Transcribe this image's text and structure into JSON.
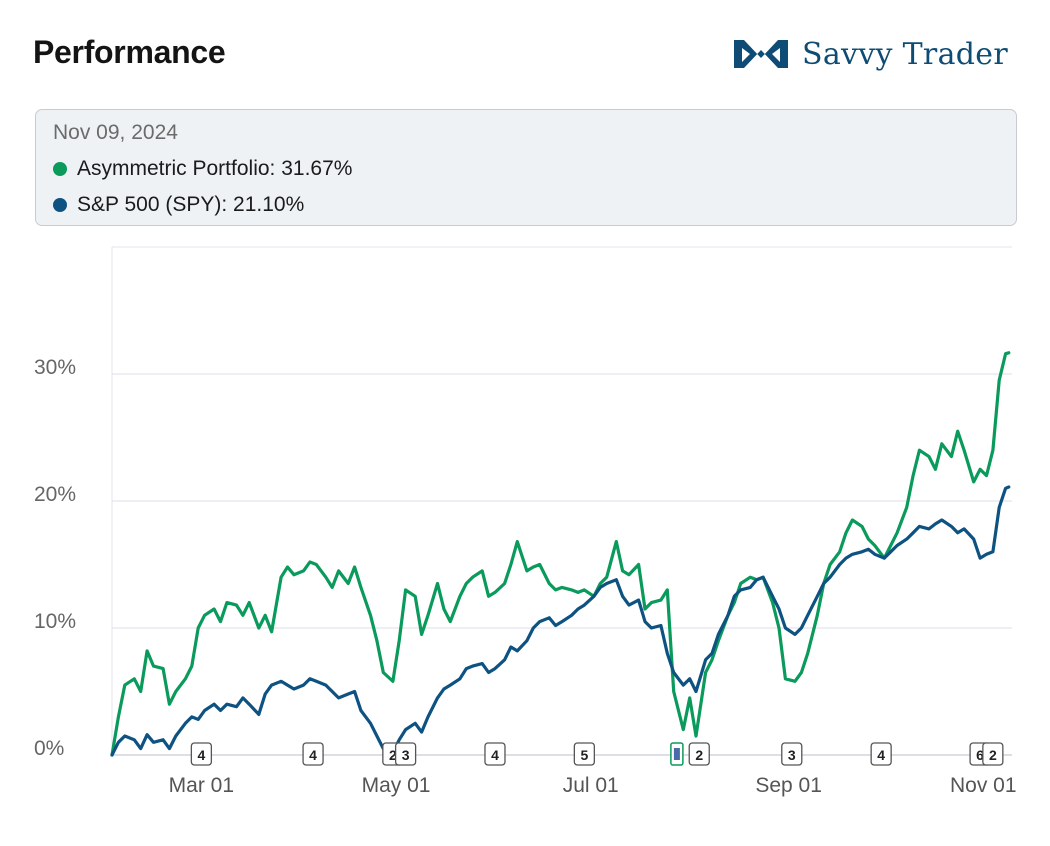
{
  "header": {
    "title": "Performance"
  },
  "brand": {
    "name": "Savvy Trader",
    "color": "#0e4c75",
    "logo_icon": "savvy-trader-logo-icon"
  },
  "tooltip": {
    "date": "Nov 09, 2024",
    "entries": [
      {
        "name": "Asymmetric Portfolio",
        "value": "31.67%",
        "color": "#0a9a5b"
      },
      {
        "name": "S&P 500 (SPY)",
        "value": "21.10%",
        "color": "#0e5282"
      }
    ]
  },
  "chart_data": {
    "type": "line",
    "title": "Performance",
    "xlabel": "",
    "ylabel": "",
    "xlim": [
      "2024-02-02",
      "2024-11-10"
    ],
    "ylim": [
      0,
      40
    ],
    "grid": true,
    "yticks": [
      {
        "value": 0,
        "label": "0%"
      },
      {
        "value": 10,
        "label": "10%"
      },
      {
        "value": 20,
        "label": "20%"
      },
      {
        "value": 30,
        "label": "30%"
      }
    ],
    "xticks": [
      {
        "date": "2024-03-01",
        "label": "Mar 01"
      },
      {
        "date": "2024-05-01",
        "label": "May 01"
      },
      {
        "date": "2024-07-01",
        "label": "Jul 01"
      },
      {
        "date": "2024-09-01",
        "label": "Sep 01"
      },
      {
        "date": "2024-11-01",
        "label": "Nov 01"
      }
    ],
    "series": [
      {
        "name": "Asymmetric Portfolio",
        "color": "#0a9a5b",
        "points": [
          [
            "2024-02-02",
            0
          ],
          [
            "2024-02-04",
            3
          ],
          [
            "2024-02-06",
            5.5
          ],
          [
            "2024-02-09",
            6
          ],
          [
            "2024-02-11",
            5
          ],
          [
            "2024-02-13",
            8.2
          ],
          [
            "2024-02-15",
            7
          ],
          [
            "2024-02-18",
            6.8
          ],
          [
            "2024-02-20",
            4
          ],
          [
            "2024-02-22",
            5
          ],
          [
            "2024-02-25",
            6
          ],
          [
            "2024-02-27",
            7
          ],
          [
            "2024-02-29",
            10
          ],
          [
            "2024-03-02",
            11
          ],
          [
            "2024-03-05",
            11.5
          ],
          [
            "2024-03-07",
            10.5
          ],
          [
            "2024-03-09",
            12
          ],
          [
            "2024-03-12",
            11.8
          ],
          [
            "2024-03-14",
            11
          ],
          [
            "2024-03-16",
            12
          ],
          [
            "2024-03-19",
            10
          ],
          [
            "2024-03-21",
            11
          ],
          [
            "2024-03-23",
            9.7
          ],
          [
            "2024-03-26",
            14
          ],
          [
            "2024-03-28",
            14.8
          ],
          [
            "2024-03-30",
            14.2
          ],
          [
            "2024-04-02",
            14.5
          ],
          [
            "2024-04-04",
            15.2
          ],
          [
            "2024-04-06",
            15
          ],
          [
            "2024-04-09",
            14
          ],
          [
            "2024-04-11",
            13.2
          ],
          [
            "2024-04-13",
            14.5
          ],
          [
            "2024-04-16",
            13.5
          ],
          [
            "2024-04-18",
            14.8
          ],
          [
            "2024-04-20",
            13.2
          ],
          [
            "2024-04-23",
            11
          ],
          [
            "2024-04-25",
            9
          ],
          [
            "2024-04-27",
            6.5
          ],
          [
            "2024-04-30",
            5.8
          ],
          [
            "2024-05-02",
            9
          ],
          [
            "2024-05-04",
            13
          ],
          [
            "2024-05-07",
            12.5
          ],
          [
            "2024-05-09",
            9.5
          ],
          [
            "2024-05-11",
            11
          ],
          [
            "2024-05-14",
            13.5
          ],
          [
            "2024-05-16",
            11.5
          ],
          [
            "2024-05-18",
            10.5
          ],
          [
            "2024-05-21",
            12.5
          ],
          [
            "2024-05-23",
            13.5
          ],
          [
            "2024-05-25",
            14
          ],
          [
            "2024-05-28",
            14.5
          ],
          [
            "2024-05-30",
            12.5
          ],
          [
            "2024-06-01",
            12.8
          ],
          [
            "2024-06-04",
            13.5
          ],
          [
            "2024-06-06",
            15
          ],
          [
            "2024-06-08",
            16.8
          ],
          [
            "2024-06-11",
            14.5
          ],
          [
            "2024-06-13",
            14.8
          ],
          [
            "2024-06-15",
            15
          ],
          [
            "2024-06-18",
            13.5
          ],
          [
            "2024-06-20",
            13
          ],
          [
            "2024-06-22",
            13.2
          ],
          [
            "2024-06-25",
            13
          ],
          [
            "2024-06-27",
            12.8
          ],
          [
            "2024-06-29",
            13
          ],
          [
            "2024-07-02",
            12.5
          ],
          [
            "2024-07-04",
            13.5
          ],
          [
            "2024-07-06",
            14
          ],
          [
            "2024-07-09",
            16.8
          ],
          [
            "2024-07-11",
            14.5
          ],
          [
            "2024-07-13",
            14.2
          ],
          [
            "2024-07-16",
            15
          ],
          [
            "2024-07-18",
            11.5
          ],
          [
            "2024-07-20",
            12
          ],
          [
            "2024-07-23",
            12.2
          ],
          [
            "2024-07-25",
            13
          ],
          [
            "2024-07-27",
            5
          ],
          [
            "2024-07-30",
            2
          ],
          [
            "2024-08-01",
            4.5
          ],
          [
            "2024-08-03",
            1.5
          ],
          [
            "2024-08-06",
            6.5
          ],
          [
            "2024-08-08",
            7.5
          ],
          [
            "2024-08-10",
            9
          ],
          [
            "2024-08-13",
            11
          ],
          [
            "2024-08-15",
            12
          ],
          [
            "2024-08-17",
            13.5
          ],
          [
            "2024-08-20",
            14
          ],
          [
            "2024-08-22",
            13.8
          ],
          [
            "2024-08-24",
            14
          ],
          [
            "2024-08-27",
            12
          ],
          [
            "2024-08-29",
            10
          ],
          [
            "2024-08-31",
            6
          ],
          [
            "2024-09-03",
            5.8
          ],
          [
            "2024-09-05",
            6.5
          ],
          [
            "2024-09-07",
            8
          ],
          [
            "2024-09-10",
            11
          ],
          [
            "2024-09-12",
            13.5
          ],
          [
            "2024-09-14",
            15
          ],
          [
            "2024-09-17",
            16
          ],
          [
            "2024-09-19",
            17.5
          ],
          [
            "2024-09-21",
            18.5
          ],
          [
            "2024-09-24",
            18
          ],
          [
            "2024-09-26",
            17
          ],
          [
            "2024-09-28",
            16.5
          ],
          [
            "2024-10-01",
            15.5
          ],
          [
            "2024-10-03",
            16.5
          ],
          [
            "2024-10-05",
            17.5
          ],
          [
            "2024-10-08",
            19.5
          ],
          [
            "2024-10-10",
            22
          ],
          [
            "2024-10-12",
            24
          ],
          [
            "2024-10-15",
            23.5
          ],
          [
            "2024-10-17",
            22.5
          ],
          [
            "2024-10-19",
            24.5
          ],
          [
            "2024-10-22",
            23.5
          ],
          [
            "2024-10-24",
            25.5
          ],
          [
            "2024-10-26",
            24
          ],
          [
            "2024-10-29",
            21.5
          ],
          [
            "2024-10-31",
            22.5
          ],
          [
            "2024-11-02",
            22
          ],
          [
            "2024-11-04",
            24
          ],
          [
            "2024-11-06",
            29.5
          ],
          [
            "2024-11-08",
            31.6
          ],
          [
            "2024-11-09",
            31.67
          ]
        ]
      },
      {
        "name": "S&P 500 (SPY)",
        "color": "#0e5282",
        "points": [
          [
            "2024-02-02",
            0
          ],
          [
            "2024-02-04",
            1
          ],
          [
            "2024-02-06",
            1.5
          ],
          [
            "2024-02-09",
            1.2
          ],
          [
            "2024-02-11",
            0.5
          ],
          [
            "2024-02-13",
            1.6
          ],
          [
            "2024-02-15",
            1
          ],
          [
            "2024-02-18",
            1.2
          ],
          [
            "2024-02-20",
            0.5
          ],
          [
            "2024-02-22",
            1.5
          ],
          [
            "2024-02-25",
            2.5
          ],
          [
            "2024-02-27",
            3
          ],
          [
            "2024-02-29",
            2.8
          ],
          [
            "2024-03-02",
            3.5
          ],
          [
            "2024-03-05",
            4
          ],
          [
            "2024-03-07",
            3.5
          ],
          [
            "2024-03-09",
            4
          ],
          [
            "2024-03-12",
            3.8
          ],
          [
            "2024-03-14",
            4.5
          ],
          [
            "2024-03-16",
            4
          ],
          [
            "2024-03-19",
            3.2
          ],
          [
            "2024-03-21",
            4.8
          ],
          [
            "2024-03-23",
            5.5
          ],
          [
            "2024-03-26",
            5.8
          ],
          [
            "2024-03-28",
            5.5
          ],
          [
            "2024-03-30",
            5.2
          ],
          [
            "2024-04-02",
            5.5
          ],
          [
            "2024-04-04",
            6
          ],
          [
            "2024-04-06",
            5.8
          ],
          [
            "2024-04-09",
            5.5
          ],
          [
            "2024-04-11",
            5
          ],
          [
            "2024-04-13",
            4.5
          ],
          [
            "2024-04-16",
            4.8
          ],
          [
            "2024-04-18",
            5
          ],
          [
            "2024-04-20",
            3.5
          ],
          [
            "2024-04-23",
            2.5
          ],
          [
            "2024-04-25",
            1.5
          ],
          [
            "2024-04-27",
            0.5
          ],
          [
            "2024-04-30",
            0.2
          ],
          [
            "2024-05-02",
            1.2
          ],
          [
            "2024-05-04",
            2
          ],
          [
            "2024-05-07",
            2.5
          ],
          [
            "2024-05-09",
            1.8
          ],
          [
            "2024-05-11",
            3
          ],
          [
            "2024-05-14",
            4.5
          ],
          [
            "2024-05-16",
            5.2
          ],
          [
            "2024-05-18",
            5.5
          ],
          [
            "2024-05-21",
            6
          ],
          [
            "2024-05-23",
            6.8
          ],
          [
            "2024-05-25",
            7
          ],
          [
            "2024-05-28",
            7.2
          ],
          [
            "2024-05-30",
            6.5
          ],
          [
            "2024-06-01",
            6.8
          ],
          [
            "2024-06-04",
            7.5
          ],
          [
            "2024-06-06",
            8.5
          ],
          [
            "2024-06-08",
            8.2
          ],
          [
            "2024-06-11",
            9
          ],
          [
            "2024-06-13",
            10
          ],
          [
            "2024-06-15",
            10.5
          ],
          [
            "2024-06-18",
            10.8
          ],
          [
            "2024-06-20",
            10.2
          ],
          [
            "2024-06-22",
            10.5
          ],
          [
            "2024-06-25",
            11
          ],
          [
            "2024-06-27",
            11.5
          ],
          [
            "2024-06-29",
            11.8
          ],
          [
            "2024-07-02",
            12.5
          ],
          [
            "2024-07-04",
            13.2
          ],
          [
            "2024-07-06",
            13.5
          ],
          [
            "2024-07-09",
            13.8
          ],
          [
            "2024-07-11",
            12.5
          ],
          [
            "2024-07-13",
            11.8
          ],
          [
            "2024-07-16",
            12.2
          ],
          [
            "2024-07-18",
            10.5
          ],
          [
            "2024-07-20",
            10
          ],
          [
            "2024-07-23",
            10.2
          ],
          [
            "2024-07-25",
            8
          ],
          [
            "2024-07-27",
            6.5
          ],
          [
            "2024-07-30",
            5.5
          ],
          [
            "2024-08-01",
            6
          ],
          [
            "2024-08-03",
            5
          ],
          [
            "2024-08-06",
            7.5
          ],
          [
            "2024-08-08",
            8
          ],
          [
            "2024-08-10",
            9.5
          ],
          [
            "2024-08-13",
            11
          ],
          [
            "2024-08-15",
            12.5
          ],
          [
            "2024-08-17",
            13
          ],
          [
            "2024-08-20",
            13.2
          ],
          [
            "2024-08-22",
            13.8
          ],
          [
            "2024-08-24",
            14
          ],
          [
            "2024-08-27",
            12.5
          ],
          [
            "2024-08-29",
            11.5
          ],
          [
            "2024-08-31",
            10
          ],
          [
            "2024-09-03",
            9.5
          ],
          [
            "2024-09-05",
            10
          ],
          [
            "2024-09-07",
            11
          ],
          [
            "2024-09-10",
            12.5
          ],
          [
            "2024-09-12",
            13.5
          ],
          [
            "2024-09-14",
            14
          ],
          [
            "2024-09-17",
            15
          ],
          [
            "2024-09-19",
            15.5
          ],
          [
            "2024-09-21",
            15.8
          ],
          [
            "2024-09-24",
            16
          ],
          [
            "2024-09-26",
            16.2
          ],
          [
            "2024-09-28",
            15.8
          ],
          [
            "2024-10-01",
            15.5
          ],
          [
            "2024-10-03",
            16
          ],
          [
            "2024-10-05",
            16.5
          ],
          [
            "2024-10-08",
            17
          ],
          [
            "2024-10-10",
            17.5
          ],
          [
            "2024-10-12",
            18
          ],
          [
            "2024-10-15",
            17.8
          ],
          [
            "2024-10-17",
            18.2
          ],
          [
            "2024-10-19",
            18.5
          ],
          [
            "2024-10-22",
            18
          ],
          [
            "2024-10-24",
            17.5
          ],
          [
            "2024-10-26",
            17.8
          ],
          [
            "2024-10-29",
            17
          ],
          [
            "2024-10-31",
            15.5
          ],
          [
            "2024-11-02",
            15.8
          ],
          [
            "2024-11-04",
            16
          ],
          [
            "2024-11-06",
            19.5
          ],
          [
            "2024-11-08",
            21
          ],
          [
            "2024-11-09",
            21.1
          ]
        ]
      }
    ],
    "markers": [
      {
        "date": "2024-03-01",
        "label": "4"
      },
      {
        "date": "2024-04-05",
        "label": "4"
      },
      {
        "date": "2024-04-30",
        "label": "2"
      },
      {
        "date": "2024-05-04",
        "label": "3"
      },
      {
        "date": "2024-06-01",
        "label": "4"
      },
      {
        "date": "2024-06-29",
        "label": "5"
      },
      {
        "date": "2024-07-28",
        "label": "",
        "style": "pair"
      },
      {
        "date": "2024-08-04",
        "label": "2"
      },
      {
        "date": "2024-09-02",
        "label": "3"
      },
      {
        "date": "2024-09-30",
        "label": "4"
      },
      {
        "date": "2024-10-31",
        "label": "6"
      },
      {
        "date": "2024-11-04",
        "label": "2"
      }
    ]
  }
}
